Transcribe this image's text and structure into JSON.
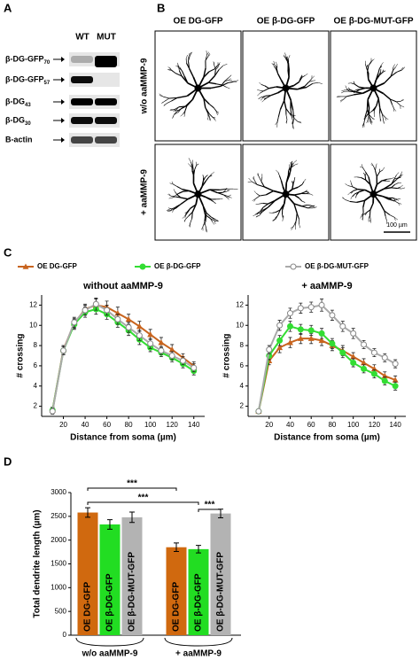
{
  "panels": [
    "A",
    "B",
    "C",
    "D"
  ],
  "blot": {
    "columns": [
      "WT",
      "MUT"
    ],
    "rows": [
      {
        "label": "β-DG-GFP",
        "sub": "70"
      },
      {
        "label": "β-DG-GFP",
        "sub": "57"
      },
      {
        "label": "β-DG",
        "sub": "43"
      },
      {
        "label": "β-DG",
        "sub": "30"
      },
      {
        "label": "B-actin"
      }
    ]
  },
  "images": {
    "columns": [
      "OE DG-GFP",
      "OE β-DG-GFP",
      "OE β-DG-MUT-GFP"
    ],
    "rows": [
      "w/o aaMMP-9",
      "+ aaMMP-9"
    ],
    "scale_bar": "100 µm"
  },
  "chart_data": [
    {
      "type": "line",
      "title": "without aaMMP-9",
      "x_label": "Distance from soma (µm)",
      "y_label": "# crossing",
      "x": [
        10,
        20,
        30,
        40,
        50,
        60,
        70,
        80,
        90,
        100,
        110,
        120,
        130,
        140
      ],
      "xlim": [
        0,
        150
      ],
      "xticks": [
        20,
        40,
        60,
        80,
        100,
        120,
        140
      ],
      "ylim": [
        1,
        13
      ],
      "yticks": [
        2,
        4,
        6,
        8,
        10,
        12
      ],
      "series": [
        {
          "name": "OE DG-GFP",
          "color": "#c8641e",
          "values": [
            1.6,
            7.6,
            10.2,
            11.6,
            12,
            11.8,
            11.2,
            10.6,
            9.9,
            9.1,
            8.3,
            7.6,
            6.8,
            6.0
          ],
          "errors": [
            0.3,
            0.4,
            0.5,
            0.5,
            0.6,
            0.6,
            0.6,
            0.5,
            0.5,
            0.5,
            0.5,
            0.5,
            0.4,
            0.4
          ]
        },
        {
          "name": "OE β-DG-GFP",
          "color": "#33dd33",
          "values": [
            1.6,
            7.5,
            10.1,
            11.3,
            11.6,
            11.1,
            10.3,
            9.5,
            8.6,
            7.8,
            7.3,
            6.8,
            6.2,
            5.5
          ],
          "errors": [
            0.3,
            0.4,
            0.5,
            0.5,
            0.5,
            0.5,
            0.5,
            0.5,
            0.5,
            0.4,
            0.4,
            0.4,
            0.4,
            0.4
          ]
        },
        {
          "name": "OE β-DG-MUT-GFP",
          "color": "#aaaaaa",
          "values": [
            1.5,
            7.5,
            10.3,
            11.5,
            12.1,
            11.5,
            10.6,
            9.8,
            9.0,
            8.2,
            7.5,
            7.0,
            6.5,
            5.8
          ],
          "errors": [
            0.3,
            0.4,
            0.5,
            0.5,
            0.6,
            0.5,
            0.5,
            0.5,
            0.5,
            0.5,
            0.4,
            0.4,
            0.4,
            0.4
          ]
        }
      ]
    },
    {
      "type": "line",
      "title": "+ aaMMP-9",
      "x_label": "Distance from soma (µm)",
      "y_label": "# crossing",
      "x": [
        10,
        20,
        30,
        40,
        50,
        60,
        70,
        80,
        90,
        100,
        110,
        120,
        130,
        140
      ],
      "xlim": [
        0,
        150
      ],
      "xticks": [
        20,
        40,
        60,
        80,
        100,
        120,
        140
      ],
      "ylim": [
        1,
        13
      ],
      "yticks": [
        2,
        4,
        6,
        8,
        10,
        12
      ],
      "series": [
        {
          "name": "OE DG-GFP",
          "color": "#c8641e",
          "values": [
            1.5,
            6.5,
            7.8,
            8.3,
            8.7,
            8.7,
            8.5,
            8.0,
            7.5,
            6.9,
            6.3,
            5.7,
            5.0,
            4.6
          ],
          "errors": [
            0.2,
            0.4,
            0.5,
            0.5,
            0.5,
            0.5,
            0.5,
            0.5,
            0.5,
            0.4,
            0.4,
            0.4,
            0.4,
            0.4
          ]
        },
        {
          "name": "OE β-DG-GFP",
          "color": "#33dd33",
          "values": [
            1.5,
            7.0,
            8.5,
            9.9,
            9.6,
            9.5,
            9.2,
            8.2,
            7.3,
            6.3,
            5.7,
            5.2,
            4.5,
            4.0
          ],
          "errors": [
            0.2,
            0.4,
            0.5,
            0.5,
            0.5,
            0.5,
            0.5,
            0.5,
            0.5,
            0.4,
            0.4,
            0.4,
            0.4,
            0.4
          ]
        },
        {
          "name": "OE β-DG-MUT-GFP",
          "color": "#aaaaaa",
          "values": [
            1.5,
            7.6,
            10.0,
            11.2,
            11.7,
            11.8,
            12.0,
            11.0,
            9.9,
            9.2,
            8.1,
            7.3,
            6.8,
            6.2
          ],
          "errors": [
            0.2,
            0.4,
            0.5,
            0.5,
            0.5,
            0.5,
            0.6,
            0.5,
            0.5,
            0.5,
            0.4,
            0.4,
            0.4,
            0.4
          ]
        }
      ]
    },
    {
      "type": "bar",
      "y_label": "Total dendrite length (µm)",
      "groups": [
        "w/o aaMMP-9",
        "+ aaMMP-9"
      ],
      "ylim": [
        0,
        3000
      ],
      "yticks": [
        0,
        500,
        1000,
        1500,
        2000,
        2500,
        3000
      ],
      "series": [
        {
          "name": "OE DG-GFP",
          "color": "#d0690f",
          "values": [
            2580,
            1850
          ],
          "errors": [
            100,
            90
          ]
        },
        {
          "name": "OE β-DG-GFP",
          "color": "#22dd22",
          "values": [
            2330,
            1810
          ],
          "errors": [
            100,
            80
          ]
        },
        {
          "name": "OE β-DG-MUT-GFP",
          "color": "#b3b3b3",
          "values": [
            2480,
            2560
          ],
          "errors": [
            110,
            90
          ]
        }
      ],
      "annotations": [
        "***",
        "***",
        "***"
      ]
    }
  ]
}
